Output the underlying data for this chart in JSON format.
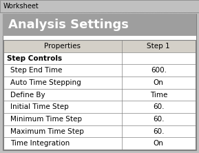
{
  "title": "Analysis Settings",
  "worksheet_label": "Worksheet",
  "headers": [
    "Properties",
    "Step 1"
  ],
  "rows": [
    {
      "label": "Step Controls",
      "value": "",
      "bold": true,
      "indent": false
    },
    {
      "label": "Step End Time",
      "value": "600.",
      "bold": false,
      "indent": true
    },
    {
      "label": "Auto Time Stepping",
      "value": "On",
      "bold": false,
      "indent": true
    },
    {
      "label": "Define By",
      "value": "Time",
      "bold": false,
      "indent": true
    },
    {
      "label": "Initial Time Step",
      "value": "60.",
      "bold": false,
      "indent": true
    },
    {
      "label": "Minimum Time Step",
      "value": "60.",
      "bold": false,
      "indent": true
    },
    {
      "label": "Maximum Time Step",
      "value": "60.",
      "bold": false,
      "indent": true
    },
    {
      "label": "Time Integration",
      "value": "On",
      "bold": false,
      "indent": true
    }
  ],
  "col_split": 0.615,
  "outer_bg": "#c0c0c0",
  "worksheet_strip_bg": "#d4d0c8",
  "panel_bg": "#ffffff",
  "title_bg": "#9e9e9e",
  "title_color": "#ffffff",
  "header_bg": "#d4d0c8",
  "row_bg": "#ffffff",
  "border_color": "#808080",
  "text_color": "#000000",
  "font_size": 7.5,
  "title_font_size": 13,
  "worksheet_font_size": 7,
  "fig_width": 2.89,
  "fig_height": 2.22,
  "dpi": 100
}
